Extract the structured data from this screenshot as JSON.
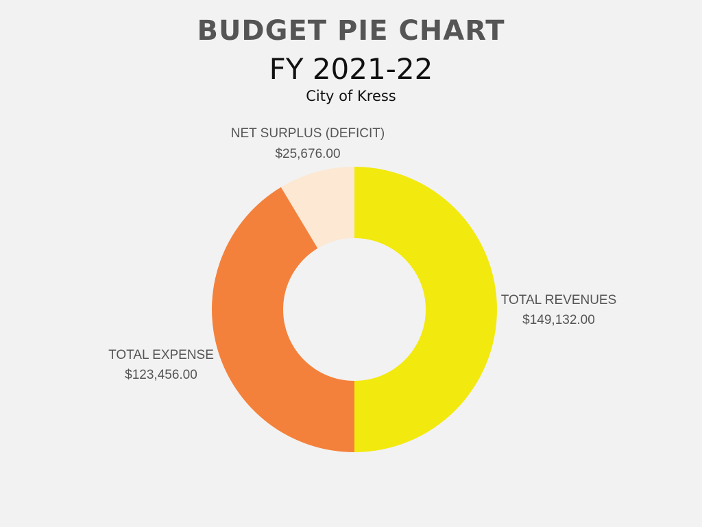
{
  "header": {
    "title": "BUDGET PIE CHART",
    "subtitle": "FY 2021-22",
    "caption": "City of Kress"
  },
  "chart_data": {
    "type": "pie",
    "donut": true,
    "categories": [
      "TOTAL REVENUES",
      "TOTAL EXPENSE",
      "NET SURPLUS (DEFICIT)"
    ],
    "values": [
      149132.0,
      123456.0,
      25676.0
    ],
    "value_labels": [
      "$149,132.00",
      "$123,456.00",
      "$25,676.00"
    ],
    "colors": [
      "#f2e90f",
      "#f4813b",
      "#fde8d3"
    ],
    "background": "#f2f2f2",
    "label_color": "#555555"
  }
}
